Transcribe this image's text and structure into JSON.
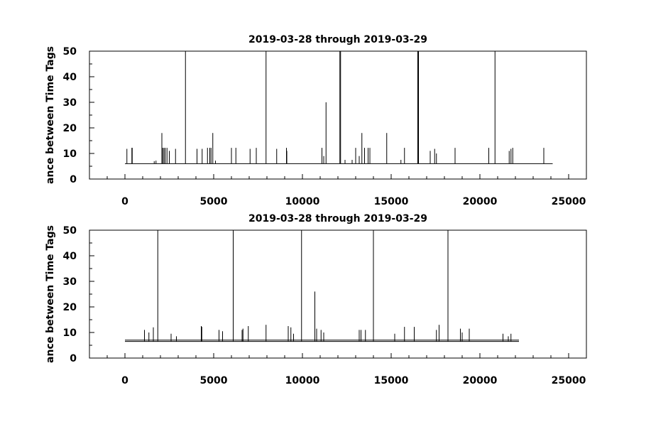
{
  "chart_data": [
    {
      "type": "line",
      "title": "2019-03-28 through 2019-03-29",
      "xlabel": "",
      "ylabel": "ance between Time Tags",
      "xlim": [
        -2000,
        26000
      ],
      "ylim": [
        0,
        50
      ],
      "xticks": [
        0,
        5000,
        10000,
        15000,
        20000,
        25000
      ],
      "xtick_labels": [
        "0",
        "5000",
        "10000",
        "15000",
        "20000",
        "25000"
      ],
      "yticks": [
        0,
        10,
        20,
        30,
        40,
        50
      ],
      "ytick_labels": [
        "0",
        "10",
        "20",
        "30",
        "40",
        "50"
      ],
      "grid": false,
      "baseline": {
        "x_start": 0,
        "x_end": 24100,
        "y": 6
      },
      "series": [
        {
          "points": [
            [
              110,
              11.8
            ],
            [
              390,
              12.2
            ],
            [
              410,
              12.2
            ],
            [
              1650,
              7
            ],
            [
              1750,
              7.2
            ],
            [
              2080,
              18
            ],
            [
              2130,
              12.2
            ],
            [
              2200,
              12.2
            ],
            [
              2270,
              12.2
            ],
            [
              2370,
              12.2
            ],
            [
              2500,
              11
            ],
            [
              2850,
              11.8
            ],
            [
              3410,
              50
            ],
            [
              4060,
              11.8
            ],
            [
              4350,
              11.8
            ],
            [
              4650,
              12.2
            ],
            [
              4780,
              12.2
            ],
            [
              4850,
              12.2
            ],
            [
              4950,
              18
            ],
            [
              5100,
              7.2
            ],
            [
              6000,
              12.2
            ],
            [
              6250,
              12.2
            ],
            [
              7050,
              11.8
            ],
            [
              7400,
              12.2
            ],
            [
              7950,
              50
            ],
            [
              8550,
              11.8
            ],
            [
              9100,
              12.2
            ],
            [
              9120,
              11
            ],
            [
              11100,
              12.2
            ],
            [
              11200,
              9
            ],
            [
              11330,
              30
            ],
            [
              12110,
              50
            ],
            [
              12150,
              50
            ],
            [
              12400,
              7.5
            ],
            [
              12800,
              7.5
            ],
            [
              13000,
              12.2
            ],
            [
              13200,
              9
            ],
            [
              13350,
              18
            ],
            [
              13500,
              12.2
            ],
            [
              13700,
              12.2
            ],
            [
              13800,
              12.2
            ],
            [
              14750,
              18
            ],
            [
              15550,
              7.5
            ],
            [
              15750,
              12.2
            ],
            [
              16500,
              50
            ],
            [
              16540,
              50
            ],
            [
              17200,
              11
            ],
            [
              17450,
              11.8
            ],
            [
              17550,
              10
            ],
            [
              18600,
              12.2
            ],
            [
              20500,
              12.2
            ],
            [
              20850,
              50
            ],
            [
              21650,
              11
            ],
            [
              21750,
              11.8
            ],
            [
              21850,
              12.2
            ],
            [
              23600,
              12.2
            ]
          ]
        }
      ]
    },
    {
      "type": "line",
      "title": "2019-03-28 through 2019-03-29",
      "xlabel": "",
      "ylabel": "ance between Time Tags",
      "xlim": [
        -2000,
        26000
      ],
      "ylim": [
        0,
        50
      ],
      "xticks": [
        0,
        5000,
        10000,
        15000,
        20000,
        25000
      ],
      "xtick_labels": [
        "0",
        "5000",
        "10000",
        "15000",
        "20000",
        "25000"
      ],
      "yticks": [
        0,
        10,
        20,
        30,
        40,
        50
      ],
      "ytick_labels": [
        "0",
        "10",
        "20",
        "30",
        "40",
        "50"
      ],
      "grid": false,
      "baseline": {
        "x_start": 0,
        "x_end": 22200,
        "y": 6.5
      },
      "series": [
        {
          "points": [
            [
              1100,
              11
            ],
            [
              1350,
              10
            ],
            [
              1600,
              12
            ],
            [
              1850,
              50
            ],
            [
              2600,
              9.5
            ],
            [
              2900,
              8.5
            ],
            [
              4300,
              12.5
            ],
            [
              4330,
              12.2
            ],
            [
              5300,
              11
            ],
            [
              5500,
              10.5
            ],
            [
              6100,
              50
            ],
            [
              6600,
              11
            ],
            [
              6650,
              11.5
            ],
            [
              6950,
              12.5
            ],
            [
              7950,
              13
            ],
            [
              9200,
              12.5
            ],
            [
              9350,
              12
            ],
            [
              9500,
              9.5
            ],
            [
              9950,
              50
            ],
            [
              10700,
              26
            ],
            [
              10800,
              11.5
            ],
            [
              11050,
              11
            ],
            [
              11200,
              10
            ],
            [
              13200,
              11
            ],
            [
              13300,
              11
            ],
            [
              13550,
              11
            ],
            [
              14000,
              50
            ],
            [
              15200,
              9.5
            ],
            [
              15750,
              12.2
            ],
            [
              16300,
              12.2
            ],
            [
              17550,
              11
            ],
            [
              17700,
              13
            ],
            [
              18200,
              50
            ],
            [
              18900,
              11.5
            ],
            [
              19000,
              10
            ],
            [
              19400,
              11.5
            ],
            [
              21300,
              9.5
            ],
            [
              21600,
              8.5
            ],
            [
              21750,
              9.5
            ]
          ]
        }
      ]
    }
  ]
}
